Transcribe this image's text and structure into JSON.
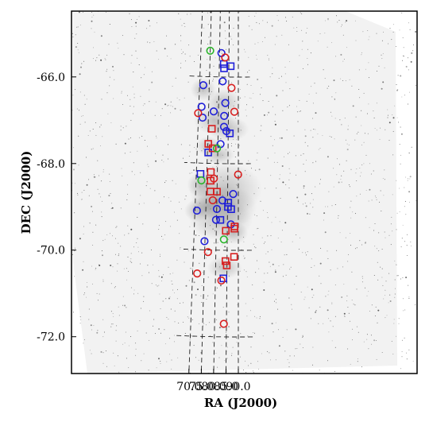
{
  "chart_data": {
    "type": "scatter",
    "title": "",
    "xlabel": "RA (J2000)",
    "ylabel": "DEC (J2000)",
    "x_ticks": [
      "90.0",
      "85.0",
      "80.0",
      "75.0",
      "70.0"
    ],
    "y_ticks": [
      "-66.0",
      "-68.0",
      "-70.0",
      "-72.0"
    ],
    "x_tick_values": [
      90,
      85,
      80,
      75,
      70
    ],
    "y_tick_values": [
      -66,
      -68,
      -70,
      -72
    ],
    "xlim": [
      93.2,
      66.8
    ],
    "ylim": [
      -72.8,
      -64.2
    ],
    "grid": true,
    "background": "grayscale sky image",
    "series": [
      {
        "marker": "circle",
        "color": "#1f1fd8",
        "points": [
          {
            "x": 81.0,
            "y": -65.45
          },
          {
            "x": 81.9,
            "y": -66.1
          },
          {
            "x": 83.4,
            "y": -66.6
          },
          {
            "x": 82.9,
            "y": -66.9
          },
          {
            "x": 82.9,
            "y": -67.15
          },
          {
            "x": 84.1,
            "y": -67.25
          },
          {
            "x": 81.3,
            "y": -67.55
          },
          {
            "x": 77.6,
            "y": -66.8
          },
          {
            "x": 71.9,
            "y": -66.2
          },
          {
            "x": 71.4,
            "y": -66.7
          },
          {
            "x": 72.1,
            "y": -66.95
          },
          {
            "x": 87.6,
            "y": -68.7
          },
          {
            "x": 86.6,
            "y": -69.4
          },
          {
            "x": 82.6,
            "y": -68.85
          },
          {
            "x": 80.1,
            "y": -69.05
          },
          {
            "x": 79.8,
            "y": -69.3
          },
          {
            "x": 74.8,
            "y": -69.8
          },
          {
            "x": 70.9,
            "y": -69.1
          }
        ]
      },
      {
        "marker": "square",
        "color": "#1f1fd8",
        "points": [
          {
            "x": 86.0,
            "y": -65.75
          },
          {
            "x": 82.3,
            "y": -65.7
          },
          {
            "x": 82.5,
            "y": -65.8
          },
          {
            "x": 85.8,
            "y": -67.3
          },
          {
            "x": 75.4,
            "y": -67.75
          },
          {
            "x": 72.0,
            "y": -68.25
          },
          {
            "x": 86.7,
            "y": -69.05
          },
          {
            "x": 85.3,
            "y": -68.9
          },
          {
            "x": 85.2,
            "y": -69.0
          },
          {
            "x": 81.8,
            "y": -69.3
          },
          {
            "x": 83.5,
            "y": -70.65
          }
        ]
      },
      {
        "marker": "circle",
        "color": "#d81f1f",
        "points": [
          {
            "x": 83.0,
            "y": -65.55
          },
          {
            "x": 86.5,
            "y": -66.25
          },
          {
            "x": 88.0,
            "y": -66.8
          },
          {
            "x": 69.8,
            "y": -66.85
          },
          {
            "x": 89.9,
            "y": -68.25
          },
          {
            "x": 78.4,
            "y": -68.35
          },
          {
            "x": 78.1,
            "y": -68.85
          },
          {
            "x": 76.5,
            "y": -70.05
          },
          {
            "x": 72.0,
            "y": -70.55
          },
          {
            "x": 82.6,
            "y": -70.7
          },
          {
            "x": 83.9,
            "y": -71.7
          }
        ]
      },
      {
        "marker": "square",
        "color": "#d81f1f",
        "points": [
          {
            "x": 76.9,
            "y": -67.2
          },
          {
            "x": 77.5,
            "y": -67.65
          },
          {
            "x": 75.3,
            "y": -67.55
          },
          {
            "x": 76.9,
            "y": -68.2
          },
          {
            "x": 76.9,
            "y": -68.4
          },
          {
            "x": 76.9,
            "y": -68.65
          },
          {
            "x": 80.0,
            "y": -68.65
          },
          {
            "x": 88.3,
            "y": -69.45
          },
          {
            "x": 88.2,
            "y": -69.5
          },
          {
            "x": 84.3,
            "y": -69.55
          },
          {
            "x": 88.1,
            "y": -70.15
          },
          {
            "x": 84.3,
            "y": -70.25
          },
          {
            "x": 84.9,
            "y": -70.35
          }
        ]
      },
      {
        "marker": "circle",
        "color": "#2ab52a",
        "points": [
          {
            "x": 75.0,
            "y": -65.4
          },
          {
            "x": 79.6,
            "y": -67.65
          },
          {
            "x": 72.5,
            "y": -68.4
          },
          {
            "x": 83.5,
            "y": -69.75
          }
        ]
      }
    ]
  }
}
